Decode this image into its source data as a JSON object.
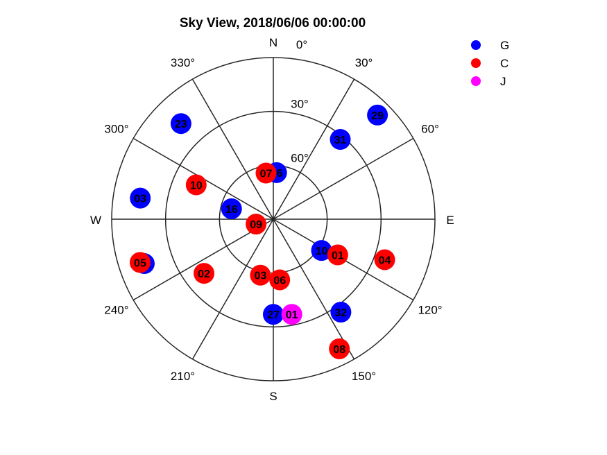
{
  "chart_data": {
    "type": "scatter",
    "subtype": "polar-skyplot",
    "title": "Sky View, 2018/06/06  00:00:00",
    "radial_axis": {
      "quantity": "elevation",
      "ring_labels": [
        "30°",
        "60°"
      ],
      "ring_values": [
        0,
        30,
        60
      ]
    },
    "angular_axis": {
      "quantity": "azimuth",
      "direction": "clockwise from north",
      "spoke_step_deg": 30,
      "tick_labels": [
        "0°",
        "30°",
        "60°",
        "120°",
        "150°",
        "210°",
        "240°",
        "300°",
        "330°"
      ],
      "tick_angles": [
        0,
        30,
        60,
        120,
        150,
        210,
        240,
        300,
        330
      ],
      "cardinals": [
        "N",
        "E",
        "S",
        "W"
      ]
    },
    "legend": {
      "position": "top-right",
      "entries": [
        {
          "name": "G",
          "color": "#0000ff"
        },
        {
          "name": "C",
          "color": "#ff0000"
        },
        {
          "name": "J",
          "color": "#ff00ff"
        }
      ]
    },
    "series": [
      {
        "name": "G",
        "color": "#0000ff",
        "points": [
          {
            "label": "23",
            "az": 316,
            "el": 16
          },
          {
            "label": "29",
            "az": 45,
            "el": 8
          },
          {
            "label": "31",
            "az": 40,
            "el": 32
          },
          {
            "label": "03",
            "az": 279,
            "el": 15
          },
          {
            "label": "16",
            "az": 284,
            "el": 66
          },
          {
            "label": "26",
            "az": 4,
            "el": 64
          },
          {
            "label": "02",
            "az": 251,
            "el": 14
          },
          {
            "label": "10",
            "az": 123,
            "el": 58
          },
          {
            "label": "32",
            "az": 144,
            "el": 26
          },
          {
            "label": "27",
            "az": 180,
            "el": 37
          }
        ]
      },
      {
        "name": "C",
        "color": "#ff0000",
        "points": [
          {
            "label": "07",
            "az": 351,
            "el": 64
          },
          {
            "label": "10",
            "az": 294,
            "el": 43
          },
          {
            "label": "09",
            "az": 254,
            "el": 80
          },
          {
            "label": "05",
            "az": 252,
            "el": 12
          },
          {
            "label": "02",
            "az": 232,
            "el": 41
          },
          {
            "label": "03",
            "az": 193,
            "el": 58
          },
          {
            "label": "06",
            "az": 174,
            "el": 56
          },
          {
            "label": "01",
            "az": 119,
            "el": 49
          },
          {
            "label": "04",
            "az": 110,
            "el": 24
          },
          {
            "label": "08",
            "az": 153,
            "el": 9
          }
        ]
      },
      {
        "name": "J",
        "color": "#ff00ff",
        "points": [
          {
            "label": "01",
            "az": 169,
            "el": 36
          }
        ]
      }
    ]
  }
}
